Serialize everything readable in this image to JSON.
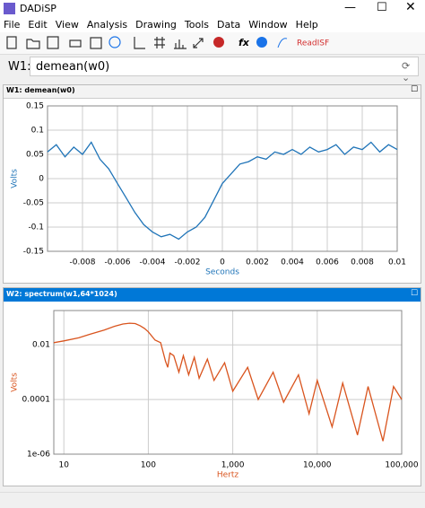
{
  "window": {
    "title": "DADiSP"
  },
  "menu": [
    "File",
    "Edit",
    "View",
    "Analysis",
    "Drawing",
    "Tools",
    "Data",
    "Window",
    "Help"
  ],
  "toolbar": {
    "readisf": "ReadISF"
  },
  "formula": {
    "label": "W1:",
    "expression": "demean(w0)"
  },
  "chart_data": [
    {
      "type": "line",
      "title": "W1: demean(w0)",
      "xlabel": "Seconds",
      "ylabel": "Volts",
      "grid": true,
      "x": [
        -0.01,
        -0.0095,
        -0.009,
        -0.0085,
        -0.008,
        -0.0075,
        -0.007,
        -0.0065,
        -0.006,
        -0.0055,
        -0.005,
        -0.0045,
        -0.004,
        -0.0035,
        -0.003,
        -0.0025,
        -0.002,
        -0.0015,
        -0.001,
        -0.0005,
        0,
        0.0005,
        0.001,
        0.0015,
        0.002,
        0.0025,
        0.003,
        0.0035,
        0.004,
        0.0045,
        0.005,
        0.0055,
        0.006,
        0.0065,
        0.007,
        0.0075,
        0.008,
        0.0085,
        0.009,
        0.0095,
        0.01
      ],
      "series": [
        {
          "color": "#1f74b8",
          "values": [
            0.055,
            0.07,
            0.045,
            0.065,
            0.05,
            0.075,
            0.04,
            0.02,
            -0.01,
            -0.04,
            -0.07,
            -0.095,
            -0.11,
            -0.12,
            -0.115,
            -0.125,
            -0.11,
            -0.1,
            -0.08,
            -0.045,
            -0.01,
            0.01,
            0.03,
            0.035,
            0.045,
            0.04,
            0.055,
            0.05,
            0.06,
            0.05,
            0.065,
            0.055,
            0.06,
            0.07,
            0.05,
            0.065,
            0.06,
            0.075,
            0.055,
            0.07,
            0.06
          ]
        }
      ],
      "xlim": [
        -0.01,
        0.01
      ],
      "xticks": [
        -0.008,
        -0.006,
        -0.004,
        -0.002,
        0,
        0.002,
        0.004,
        0.006,
        0.008,
        0.01
      ],
      "ylim": [
        -0.15,
        0.15
      ],
      "yticks": [
        -0.15,
        -0.1,
        -0.05,
        0,
        0.05,
        0.1,
        0.15
      ]
    },
    {
      "type": "line",
      "title": "W2: spectrum(w1,64*1024)",
      "xlabel": "Hertz",
      "ylabel": "Volts",
      "grid": true,
      "xscale": "log",
      "yscale": "log",
      "x": [
        7.6,
        10,
        15,
        20,
        30,
        40,
        50,
        60,
        70,
        80,
        90,
        100,
        120,
        140,
        160,
        170,
        180,
        200,
        230,
        260,
        300,
        350,
        400,
        500,
        600,
        800,
        1000,
        1500,
        2000,
        3000,
        4000,
        6000,
        8000,
        10000,
        15000,
        20000,
        30000,
        40000,
        60000,
        80000,
        100000
      ],
      "series": [
        {
          "color": "#d9541e",
          "values": [
            0.012,
            0.014,
            0.018,
            0.024,
            0.035,
            0.048,
            0.058,
            0.062,
            0.06,
            0.05,
            0.04,
            0.03,
            0.015,
            0.012,
            0.0025,
            0.0015,
            0.005,
            0.004,
            0.001,
            0.004,
            0.0008,
            0.0035,
            0.0006,
            0.003,
            0.0005,
            0.0022,
            0.0002,
            0.0015,
            0.0001,
            0.001,
            8e-05,
            0.0008,
            3e-05,
            0.0005,
            1e-05,
            0.0004,
            5e-06,
            0.0003,
            3e-06,
            0.0003,
            0.0001
          ]
        }
      ],
      "xlim": [
        7.6,
        100000
      ],
      "xticks": [
        10,
        100,
        {
          "value": 1000,
          "label": "1,000"
        },
        {
          "value": 10000,
          "label": "10,000"
        },
        {
          "value": 100000,
          "label": "100,000"
        }
      ],
      "ylim": [
        1e-06,
        0.18
      ],
      "yticks": [
        {
          "value": 1e-06,
          "label": "1e-06"
        },
        0.0001,
        0.01
      ]
    }
  ]
}
